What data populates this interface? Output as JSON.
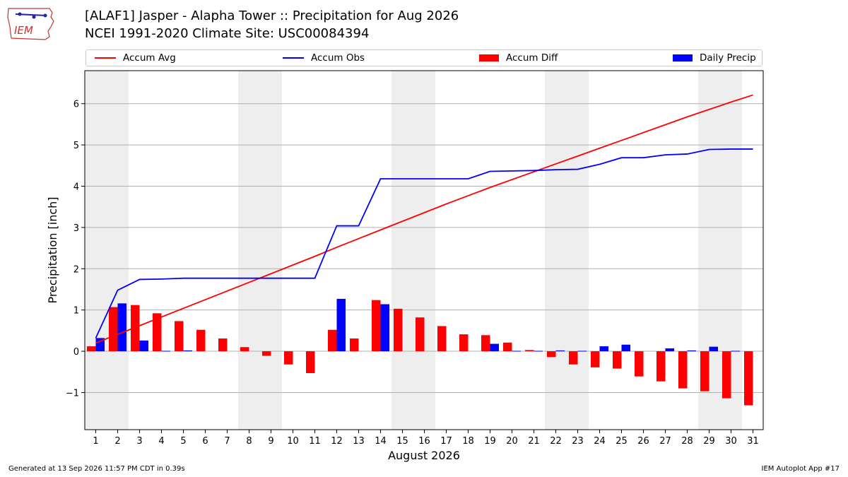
{
  "header": {
    "title_line1": "[ALAF1] Jasper - Alapha Tower :: Precipitation for Aug 2026",
    "title_line2": "NCEI 1991-2020 Climate Site: USC00084394",
    "logo_text": "IEM"
  },
  "footer": {
    "generated": "Generated at 13 Sep 2026 11:57 PM CDT in 0.39s",
    "app": "IEM Autoplot App #17"
  },
  "colors": {
    "accum_avg": "#ff0000",
    "accum_obs": "#0000ff",
    "accum_diff": "#ff0000",
    "daily_precip": "#0000ff",
    "weekend_shade": "#eeeeee",
    "grid": "#b0b0b0"
  },
  "chart_data": {
    "type": "bar",
    "xlabel": "August 2026",
    "ylabel": "Precipitation [inch]",
    "ylim": [
      -1.9,
      6.8
    ],
    "yticks": [
      -1,
      0,
      1,
      2,
      3,
      4,
      5,
      6
    ],
    "ytick_labels": [
      "−1",
      "0",
      "1",
      "2",
      "3",
      "4",
      "5",
      "6"
    ],
    "grid": "horizontal",
    "legend_placement": "top",
    "days": [
      1,
      2,
      3,
      4,
      5,
      6,
      7,
      8,
      9,
      10,
      11,
      12,
      13,
      14,
      15,
      16,
      17,
      18,
      19,
      20,
      21,
      22,
      23,
      24,
      25,
      26,
      27,
      28,
      29,
      30,
      31
    ],
    "shaded_day_ranges": [
      [
        1,
        2
      ],
      [
        8,
        9
      ],
      [
        15,
        16
      ],
      [
        22,
        23
      ],
      [
        29,
        30
      ]
    ],
    "legend": {
      "accum_avg": "Accum Avg",
      "accum_obs": "Accum Obs",
      "accum_diff": "Accum Diff",
      "daily_precip": "Daily Precip"
    },
    "accum_avg": [
      0.2,
      0.41,
      0.62,
      0.83,
      1.04,
      1.25,
      1.46,
      1.67,
      1.88,
      2.09,
      2.3,
      2.52,
      2.73,
      2.94,
      3.15,
      3.36,
      3.57,
      3.77,
      3.97,
      4.16,
      4.35,
      4.54,
      4.73,
      4.92,
      5.11,
      5.3,
      5.49,
      5.68,
      5.86,
      6.04,
      6.21
    ],
    "accum_obs": [
      0.32,
      1.48,
      1.74,
      1.75,
      1.77,
      1.77,
      1.77,
      1.77,
      1.77,
      1.77,
      1.77,
      3.04,
      3.04,
      4.18,
      4.18,
      4.18,
      4.18,
      4.18,
      4.36,
      4.37,
      4.38,
      4.4,
      4.41,
      4.53,
      4.69,
      4.69,
      4.76,
      4.78,
      4.89,
      4.9,
      4.9
    ],
    "accum_diff": [
      0.12,
      1.07,
      1.12,
      0.92,
      0.73,
      0.52,
      0.31,
      0.1,
      -0.11,
      -0.32,
      -0.53,
      0.52,
      0.31,
      1.24,
      1.03,
      0.82,
      0.61,
      0.41,
      0.39,
      0.21,
      0.03,
      -0.14,
      -0.32,
      -0.39,
      -0.42,
      -0.61,
      -0.73,
      -0.9,
      -0.97,
      -1.14,
      -1.31
    ],
    "daily_precip": [
      0.32,
      1.16,
      0.26,
      0.01,
      0.02,
      0.0,
      0.0,
      0.0,
      0.0,
      0.0,
      0.0,
      1.27,
      0.0,
      1.14,
      0.0,
      0.0,
      0.0,
      0.0,
      0.18,
      0.01,
      0.01,
      0.02,
      0.01,
      0.12,
      0.16,
      0.0,
      0.07,
      0.02,
      0.11,
      0.01,
      0.0
    ]
  }
}
